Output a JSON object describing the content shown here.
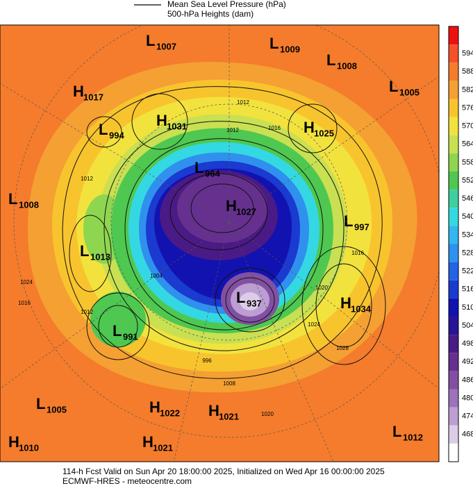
{
  "legend": {
    "items": [
      "Mean Sea Level Pressure (hPa)",
      "500-hPa Heights (dam)"
    ]
  },
  "colorbar": {
    "ticks": [
      594,
      588,
      582,
      576,
      570,
      564,
      558,
      552,
      546,
      540,
      534,
      528,
      522,
      516,
      510,
      504,
      498,
      492,
      486,
      480,
      474,
      468
    ],
    "top_color": "#ee1010",
    "colors": [
      "#f5502a",
      "#f47c2c",
      "#f5a032",
      "#f8c42e",
      "#f2e23e",
      "#c8e052",
      "#8ed650",
      "#4ec850",
      "#3ecfa0",
      "#34d8e2",
      "#34b6f0",
      "#3090ee",
      "#2462e6",
      "#1a3ad0",
      "#1212b0",
      "#281496",
      "#4a1a86",
      "#66308e",
      "#8250a2",
      "#9c72ba",
      "#bc9ed2",
      "#dccce8"
    ],
    "bottom_color": "#ffffff"
  },
  "centers": [
    {
      "letter": "L",
      "value": "1007"
    },
    {
      "letter": "L",
      "value": "1009"
    },
    {
      "letter": "L",
      "value": "1008"
    },
    {
      "letter": "L",
      "value": "1005"
    },
    {
      "letter": "H",
      "value": "1017"
    },
    {
      "letter": "L",
      "value": "994"
    },
    {
      "letter": "H",
      "value": "1031"
    },
    {
      "letter": "H",
      "value": "1025"
    },
    {
      "letter": "L",
      "value": "964"
    },
    {
      "letter": "H",
      "value": "1027"
    },
    {
      "letter": "L",
      "value": "1008"
    },
    {
      "letter": "L",
      "value": "997"
    },
    {
      "letter": "L",
      "value": "1013"
    },
    {
      "letter": "H",
      "value": "1034"
    },
    {
      "letter": "L",
      "value": "937"
    },
    {
      "letter": "L",
      "value": "991"
    },
    {
      "letter": "L",
      "value": "1005"
    },
    {
      "letter": "H",
      "value": "1022"
    },
    {
      "letter": "H",
      "value": "1021"
    },
    {
      "letter": "H",
      "value": "1010"
    },
    {
      "letter": "H",
      "value": "1021"
    },
    {
      "letter": "L",
      "value": "1012"
    }
  ],
  "contour_labels": [
    "1012",
    "1012",
    "1016",
    "1012",
    "1016",
    "1024",
    "1016",
    "1012",
    "1008",
    "1020",
    "1028",
    "1024",
    "1020",
    "996",
    "1004"
  ],
  "footer": {
    "line1": "114-h Fcst Valid on Sun Apr 20 18:00:00 2025, Initialized on Wed Apr 16 00:00:00 2025",
    "line2": "ECMWF-HRES - meteocentre.com"
  }
}
